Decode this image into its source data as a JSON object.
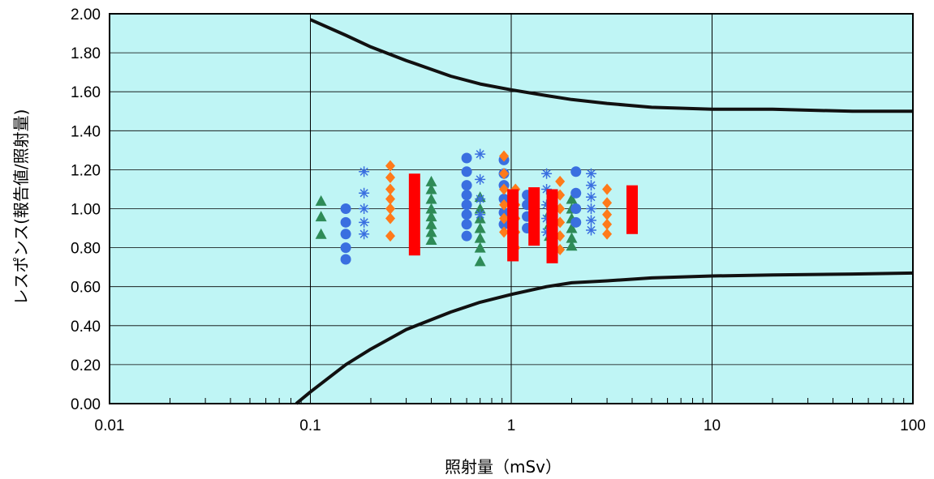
{
  "chart_data": {
    "type": "scatter",
    "title": "",
    "xlabel": "照射量（mSv）",
    "ylabel": "レスポンス(報告値/照射量)",
    "x_scale": "log",
    "xlim": [
      0.01,
      100
    ],
    "ylim": [
      0,
      2.0
    ],
    "x_ticks": [
      "0.01",
      "0.1",
      "1",
      "10",
      "100"
    ],
    "y_ticks": [
      "0.00",
      "0.20",
      "0.40",
      "0.60",
      "0.80",
      "1.00",
      "1.20",
      "1.40",
      "1.60",
      "1.80",
      "2.00"
    ],
    "grid": true,
    "legend": "none",
    "colors": {
      "plot_background": "#bff5f5",
      "grid": "#000000",
      "green": "#2e8b57",
      "blue": "#3a6fe0",
      "orange": "#ff7a1a",
      "red": "#ff0000",
      "limit_curve": "#111111"
    },
    "limit_curves": [
      {
        "name": "",
        "x": [
          0.1,
          0.15,
          0.2,
          0.3,
          0.5,
          0.7,
          1,
          1.5,
          2,
          3,
          5,
          10,
          20,
          50,
          100
        ],
        "y": [
          1.97,
          1.89,
          1.83,
          1.76,
          1.68,
          1.64,
          1.61,
          1.58,
          1.56,
          1.54,
          1.52,
          1.51,
          1.51,
          1.5,
          1.5
        ]
      },
      {
        "name": "",
        "x": [
          0.085,
          0.1,
          0.15,
          0.2,
          0.3,
          0.5,
          0.7,
          1,
          1.5,
          2,
          3,
          5,
          10,
          20,
          50,
          100
        ],
        "y": [
          0.0,
          0.06,
          0.2,
          0.28,
          0.38,
          0.47,
          0.52,
          0.56,
          0.6,
          0.62,
          0.63,
          0.645,
          0.655,
          0.66,
          0.665,
          0.67
        ]
      }
    ],
    "series": [
      {
        "name": "",
        "marker": "triangle",
        "color": "#2e8b57",
        "points": [
          [
            0.113,
            1.04
          ],
          [
            0.113,
            0.96
          ],
          [
            0.113,
            0.87
          ],
          [
            0.4,
            1.14
          ],
          [
            0.4,
            1.1
          ],
          [
            0.4,
            1.05
          ],
          [
            0.4,
            1.0
          ],
          [
            0.4,
            0.96
          ],
          [
            0.4,
            0.92
          ],
          [
            0.4,
            0.88
          ],
          [
            0.4,
            0.84
          ],
          [
            0.7,
            1.06
          ],
          [
            0.7,
            1.0
          ],
          [
            0.7,
            0.95
          ],
          [
            0.7,
            0.9
          ],
          [
            0.7,
            0.85
          ],
          [
            0.7,
            0.8
          ],
          [
            0.7,
            0.73
          ],
          [
            1.55,
            1.04
          ],
          [
            1.55,
            0.98
          ],
          [
            1.55,
            0.92
          ],
          [
            1.55,
            0.86
          ],
          [
            2.0,
            1.05
          ],
          [
            2.0,
            1.0
          ],
          [
            2.0,
            0.95
          ],
          [
            2.0,
            0.9
          ],
          [
            2.0,
            0.85
          ],
          [
            2.0,
            0.81
          ]
        ]
      },
      {
        "name": "",
        "marker": "circle",
        "color": "#3a6fe0",
        "points": [
          [
            0.15,
            1.0
          ],
          [
            0.15,
            0.93
          ],
          [
            0.15,
            0.87
          ],
          [
            0.15,
            0.8
          ],
          [
            0.15,
            0.74
          ],
          [
            0.6,
            1.26
          ],
          [
            0.6,
            1.19
          ],
          [
            0.6,
            1.12
          ],
          [
            0.6,
            1.07
          ],
          [
            0.6,
            1.02
          ],
          [
            0.6,
            0.97
          ],
          [
            0.6,
            0.92
          ],
          [
            0.6,
            0.86
          ],
          [
            0.92,
            1.25
          ],
          [
            0.92,
            1.18
          ],
          [
            0.92,
            1.12
          ],
          [
            0.92,
            1.05
          ],
          [
            0.92,
            0.98
          ],
          [
            0.92,
            0.92
          ],
          [
            1.2,
            1.07
          ],
          [
            1.2,
            1.02
          ],
          [
            1.2,
            0.96
          ],
          [
            1.2,
            0.9
          ],
          [
            2.1,
            1.19
          ],
          [
            2.1,
            1.08
          ],
          [
            2.1,
            1.0
          ],
          [
            2.1,
            0.93
          ]
        ]
      },
      {
        "name": "",
        "marker": "asterisk",
        "color": "#3a6fe0",
        "points": [
          [
            0.185,
            1.19
          ],
          [
            0.185,
            1.08
          ],
          [
            0.185,
            1.0
          ],
          [
            0.185,
            0.93
          ],
          [
            0.185,
            0.87
          ],
          [
            0.7,
            1.28
          ],
          [
            0.7,
            1.15
          ],
          [
            0.7,
            1.05
          ],
          [
            0.7,
            0.97
          ],
          [
            1.5,
            1.18
          ],
          [
            1.5,
            1.1
          ],
          [
            1.5,
            1.02
          ],
          [
            1.5,
            0.95
          ],
          [
            1.5,
            0.88
          ],
          [
            2.5,
            1.18
          ],
          [
            2.5,
            1.12
          ],
          [
            2.5,
            1.06
          ],
          [
            2.5,
            1.0
          ],
          [
            2.5,
            0.94
          ],
          [
            2.5,
            0.89
          ]
        ]
      },
      {
        "name": "",
        "marker": "diamond",
        "color": "#ff7a1a",
        "points": [
          [
            0.25,
            1.22
          ],
          [
            0.25,
            1.16
          ],
          [
            0.25,
            1.1
          ],
          [
            0.25,
            1.05
          ],
          [
            0.25,
            1.0
          ],
          [
            0.25,
            0.95
          ],
          [
            0.25,
            0.86
          ],
          [
            0.92,
            1.27
          ],
          [
            0.92,
            1.18
          ],
          [
            0.92,
            1.1
          ],
          [
            0.92,
            1.02
          ],
          [
            0.92,
            0.95
          ],
          [
            0.92,
            0.88
          ],
          [
            1.05,
            1.1
          ],
          [
            1.05,
            1.02
          ],
          [
            1.05,
            0.95
          ],
          [
            1.05,
            0.88
          ],
          [
            1.05,
            0.8
          ],
          [
            1.75,
            1.14
          ],
          [
            1.75,
            1.07
          ],
          [
            1.75,
            1.0
          ],
          [
            1.75,
            0.93
          ],
          [
            1.75,
            0.86
          ],
          [
            1.75,
            0.79
          ],
          [
            3.0,
            1.1
          ],
          [
            3.0,
            1.03
          ],
          [
            3.0,
            0.97
          ],
          [
            3.0,
            0.92
          ],
          [
            3.0,
            0.87
          ]
        ]
      },
      {
        "name": "",
        "marker": "bar",
        "color": "#ff0000",
        "ranges": [
          [
            0.33,
            0.76,
            1.18
          ],
          [
            1.02,
            0.73,
            1.1
          ],
          [
            1.3,
            0.81,
            1.11
          ],
          [
            1.6,
            0.72,
            1.1
          ],
          [
            4.0,
            0.87,
            1.12
          ]
        ]
      }
    ]
  }
}
